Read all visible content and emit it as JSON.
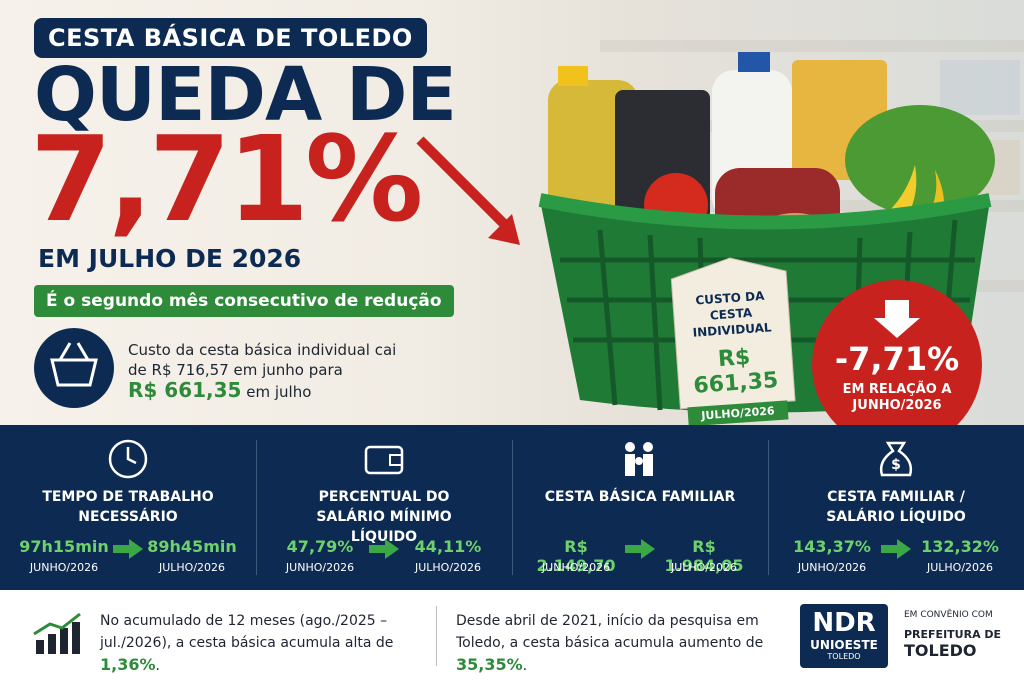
{
  "header": {
    "kicker": "CESTA BÁSICA DE TOLEDO",
    "headline": "QUEDA DE",
    "rate": "7,71%",
    "period": "EM JULHO DE 2026",
    "banner": "É o segundo mês consecutivo de redução"
  },
  "summary": {
    "text": "Custo da cesta básica individual cai de R$ 716,57 em junho para",
    "highlight": "R$ 661,35",
    "suffix": "em julho"
  },
  "tag": {
    "title": "CUSTO DA CESTA INDIVIDUAL",
    "value": "R$ 661,35",
    "period": "JULHO/2026"
  },
  "badge": {
    "value": "-7,71%",
    "caption": "EM RELAÇÃO A JUNHO/2026"
  },
  "metrics": [
    {
      "title": "TEMPO DE TRABALHO NECESSÁRIO",
      "from": {
        "value": "97h15min",
        "period": "JUNHO/2026"
      },
      "to": {
        "value": "89h45min",
        "period": "JULHO/2026"
      }
    },
    {
      "title": "PERCENTUAL DO SALÁRIO MÍNIMO LÍQUIDO",
      "from": {
        "value": "47,79%",
        "period": "JUNHO/2026"
      },
      "to": {
        "value": "44,11%",
        "period": "JULHO/2026"
      }
    },
    {
      "title": "CESTA BÁSICA FAMILIAR",
      "from": {
        "value": "R$ 2.149,70",
        "period": "JUNHO/2026"
      },
      "to": {
        "value": "R$ 1.984,05",
        "period": "JULHO/2026"
      }
    },
    {
      "title": "CESTA FAMILIAR / SALÁRIO LÍQUIDO",
      "from": {
        "value": "143,37%",
        "period": "JUNHO/2026"
      },
      "to": {
        "value": "132,32%",
        "period": "JULHO/2026"
      }
    }
  ],
  "notes": [
    {
      "text": "No acumulado de 12 meses (ago./2025 – jul./2026), a cesta básica acumula alta de",
      "highlight": "1,36%",
      "end": "."
    },
    {
      "text": "Desde abril de 2021, início da pesquisa em Toledo, a cesta básica acumula aumento de",
      "highlight": "35,35%",
      "end": "."
    }
  ],
  "logos": {
    "ndr": "NDR",
    "ndr_sub": "UNIOESTE",
    "ndr_city": "TOLEDO",
    "partner_label": "EM CONVÊNIO COM",
    "partner_line1": "PREFEITURA DE",
    "partner_line2": "TOLEDO"
  }
}
